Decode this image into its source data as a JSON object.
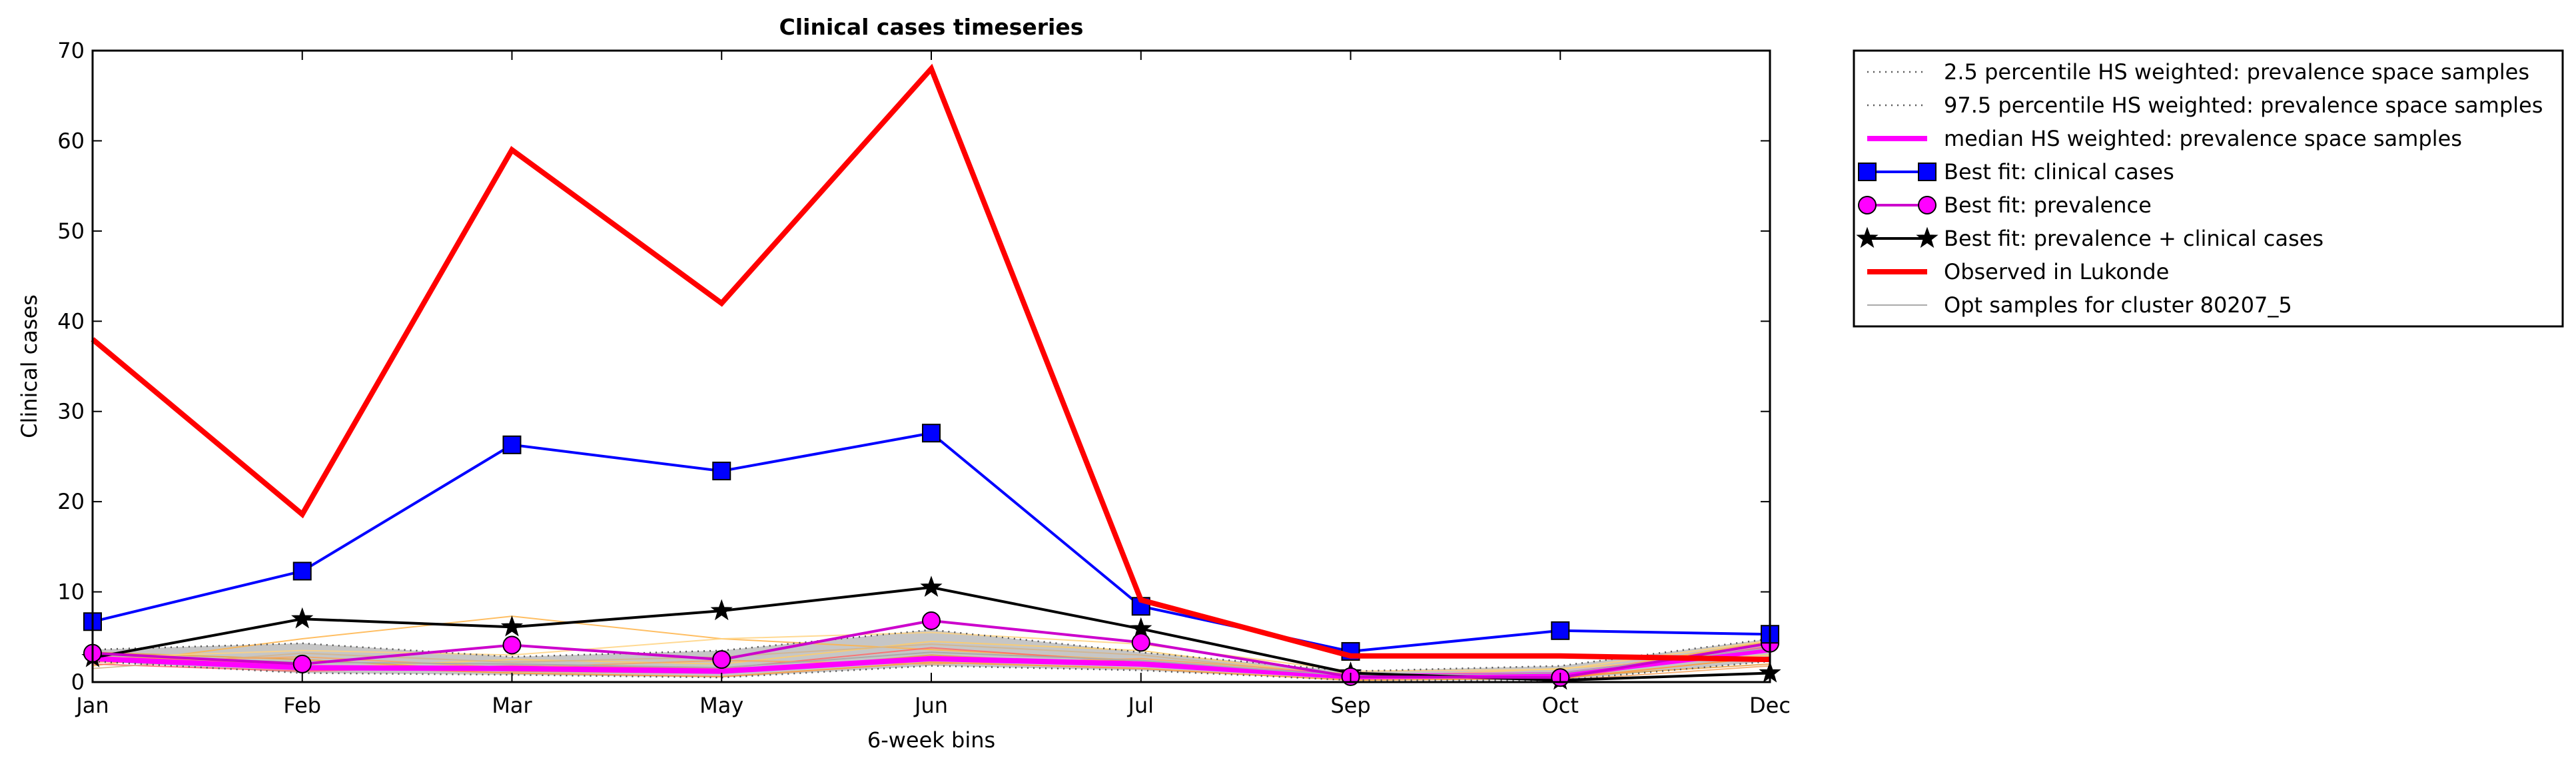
{
  "chart_data": {
    "type": "line",
    "title": "Clinical cases timeseries",
    "xlabel": "6-week bins",
    "ylabel": "Clinical cases",
    "categories": [
      "Jan",
      "Feb",
      "Mar",
      "May",
      "Jun",
      "Jul",
      "Sep",
      "Oct",
      "Dec"
    ],
    "ylim": [
      0,
      70
    ],
    "yticks": [
      0,
      10,
      20,
      30,
      40,
      50,
      60,
      70
    ],
    "grid": false,
    "legend_position": "outside-right",
    "series": [
      {
        "name": "2.5 percentile HS weighted: prevalence space samples",
        "color": "#555555",
        "style": "dotted",
        "values": [
          2.3,
          1.0,
          0.8,
          0.5,
          1.8,
          1.3,
          0.2,
          0.2,
          2.3
        ]
      },
      {
        "name": "97.5 percentile HS weighted: prevalence space samples",
        "color": "#555555",
        "style": "dotted",
        "values": [
          3.6,
          4.3,
          2.8,
          3.5,
          5.8,
          3.3,
          1.2,
          1.8,
          4.8
        ]
      },
      {
        "name": "median HS weighted: prevalence space samples",
        "color": "#ff00ff",
        "style": "solid-thick",
        "values": [
          2.6,
          1.6,
          1.5,
          1.2,
          2.6,
          2.0,
          0.6,
          0.8,
          3.6
        ]
      },
      {
        "name": "Best fit: clinical cases",
        "color": "#0000ff",
        "marker": "square",
        "values": [
          6.7,
          12.3,
          26.3,
          23.4,
          27.6,
          8.4,
          3.4,
          5.7,
          5.3
        ]
      },
      {
        "name": "Best fit: prevalence",
        "color": "#cc00cc",
        "marker_fill": "#ff00ff",
        "marker": "circle",
        "values": [
          3.2,
          2.0,
          4.1,
          2.5,
          6.8,
          4.4,
          0.6,
          0.5,
          4.3
        ]
      },
      {
        "name": "Best fit: prevalence + clinical cases",
        "color": "#000000",
        "marker": "star",
        "values": [
          2.7,
          7.0,
          6.1,
          7.9,
          10.5,
          5.9,
          1.0,
          0.2,
          1.0
        ]
      },
      {
        "name": "Observed in Lukonde",
        "color": "#ff0000",
        "style": "solid-thick",
        "values": [
          38,
          18.6,
          59,
          42,
          68,
          9.1,
          2.9,
          2.9,
          2.5
        ]
      },
      {
        "name": "Opt samples for cluster 80207_5",
        "color": "#aaaaaa",
        "style": "thin",
        "values": [
          3.0,
          2.2,
          2.0,
          1.6,
          3.3,
          2.4,
          0.7,
          1.0,
          3.8
        ]
      }
    ],
    "samples": [
      {
        "color": "#ffb347",
        "values": [
          1.8,
          4.8,
          7.3,
          4.8,
          3.6,
          2.4,
          0.3,
          0.8,
          4.5
        ]
      },
      {
        "color": "#ffcc66",
        "values": [
          2.5,
          1.5,
          2.5,
          2.0,
          4.5,
          3.5,
          0.5,
          1.5,
          3.0
        ]
      },
      {
        "color": "#e8a040",
        "values": [
          3.3,
          2.5,
          1.2,
          1.0,
          3.0,
          1.8,
          0.4,
          0.6,
          2.0
        ]
      },
      {
        "color": "#ff6666",
        "values": [
          2.0,
          1.2,
          1.8,
          1.5,
          3.8,
          2.2,
          0.8,
          0.3,
          4.0
        ]
      },
      {
        "color": "#ff9933",
        "values": [
          3.0,
          1.8,
          1.0,
          0.6,
          2.2,
          1.5,
          0.2,
          0.4,
          2.8
        ]
      },
      {
        "color": "#ffd27f",
        "values": [
          2.7,
          3.5,
          3.0,
          4.8,
          5.5,
          4.2,
          1.2,
          1.4,
          4.6
        ]
      },
      {
        "color": "#d2b48c",
        "values": [
          1.5,
          3.2,
          2.2,
          2.8,
          4.2,
          3.0,
          0.6,
          1.0,
          3.5
        ]
      },
      {
        "color": "#f4a460",
        "values": [
          2.2,
          2.8,
          1.6,
          2.4,
          2.0,
          2.6,
          0.9,
          0.2,
          1.8
        ]
      }
    ]
  }
}
